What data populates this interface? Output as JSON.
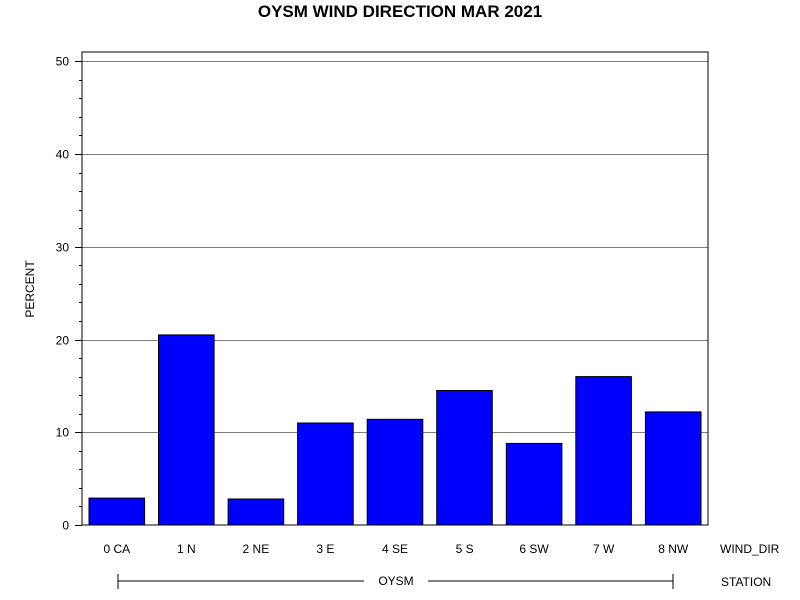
{
  "chart_data": {
    "type": "bar",
    "title": "OYSM WIND DIRECTION MAR 2021",
    "ylabel": "PERCENT",
    "xlabel": "",
    "ylim": [
      0,
      51
    ],
    "yticks": [
      0,
      10,
      20,
      30,
      40,
      50
    ],
    "y_minor_tick_step": 2,
    "grid": true,
    "categories": [
      "0 CA",
      "1 N",
      "2 NE",
      "3 E",
      "4 SE",
      "5 S",
      "6 SW",
      "7 W",
      "8 NW"
    ],
    "values": [
      2.9,
      20.5,
      2.8,
      11.0,
      11.4,
      14.5,
      8.8,
      16.0,
      12.2
    ],
    "category_axis_name": "WIND_DIR",
    "group_axis_name": "STATION",
    "group_label": "OYSM",
    "bar_color": "#0000ff",
    "bar_edge_color": "#000000",
    "grid_color": "#808080"
  }
}
